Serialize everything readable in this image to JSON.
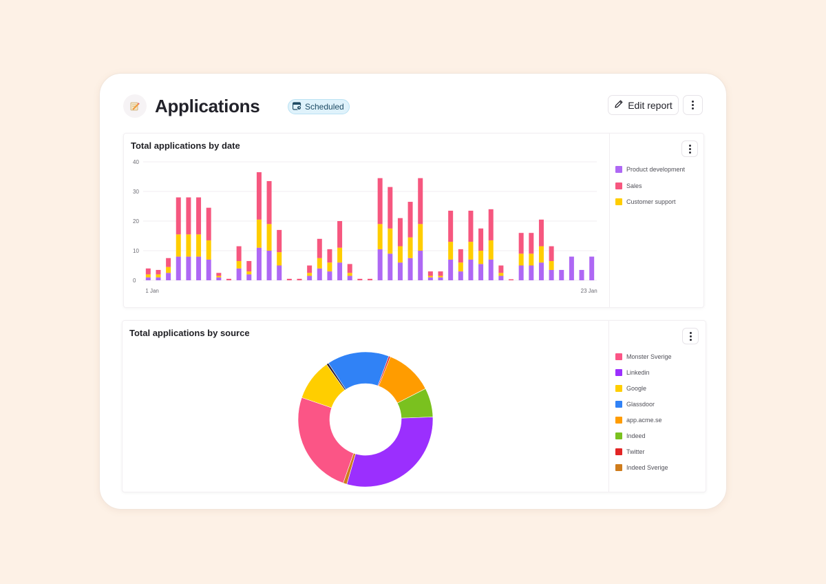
{
  "header": {
    "title": "Applications",
    "badge": "Scheduled",
    "edit_button": "Edit report",
    "icons": {
      "app": "notebook-pencil-icon",
      "badge": "calendar-icon",
      "edit": "pencil-icon",
      "more": "vertical-dots-icon"
    }
  },
  "charts": {
    "by_date": {
      "title": "Total applications by date"
    },
    "by_source": {
      "title": "Total applications by source"
    }
  },
  "chart_data": [
    {
      "type": "bar",
      "stacked": true,
      "title": "Total applications by date",
      "x_tick_labels": [
        "1 Jan",
        "23 Jan"
      ],
      "y_ticks": [
        0,
        10,
        20,
        30,
        40
      ],
      "ylim": [
        0,
        40
      ],
      "grid": true,
      "legend_position": "right",
      "series": [
        {
          "name": "Product development",
          "color": "#ae68f4",
          "values": [
            1,
            1,
            2.5,
            8,
            8,
            8,
            7,
            1,
            0,
            4,
            2,
            11,
            10,
            5,
            0,
            0,
            1.5,
            4,
            3,
            6,
            1.5,
            0,
            0,
            10.5,
            9,
            6,
            7.5,
            10,
            1,
            1,
            7,
            3,
            7,
            5.5,
            7,
            1.5,
            0,
            5,
            5,
            6,
            3.5,
            3.5,
            8,
            3.5,
            8
          ]
        },
        {
          "name": "Sales",
          "color": "#f6577f",
          "values": [
            2,
            1.5,
            3,
            12.5,
            12.5,
            12.5,
            11,
            1,
            0.5,
            5,
            3.5,
            16,
            14.5,
            7.5,
            0.5,
            0.5,
            2.5,
            6.5,
            4.5,
            9,
            3,
            0.5,
            0.5,
            15.5,
            14,
            9.5,
            12,
            15.5,
            1.5,
            1.5,
            10.5,
            4.5,
            10.5,
            7.5,
            10.5,
            2.5,
            0,
            7,
            7,
            9,
            5,
            0,
            0,
            0,
            0
          ]
        },
        {
          "name": "Customer support",
          "color": "#ffcd00",
          "values": [
            1,
            1,
            2,
            7.5,
            7.5,
            7.5,
            6.5,
            0.5,
            0,
            2.5,
            1,
            9.5,
            9,
            4.5,
            0,
            0,
            1,
            3.5,
            3,
            5,
            1,
            0,
            0,
            8.5,
            8.5,
            5.5,
            7,
            9,
            0.5,
            0.5,
            6,
            3,
            6,
            4.5,
            6.5,
            1,
            0,
            4,
            4,
            5.5,
            3,
            0,
            0,
            0,
            0
          ]
        }
      ]
    },
    {
      "type": "pie",
      "donut": true,
      "title": "Total applications by source",
      "legend_position": "right",
      "slices": [
        {
          "label": "Monster Sverige",
          "value": 25.0,
          "color": "#fb5586"
        },
        {
          "label": "Linkedin",
          "value": 30.2,
          "color": "#9b2ffe"
        },
        {
          "label": "Google",
          "value": 10.0,
          "color": "#ffce00"
        },
        {
          "label": "Glassdoor",
          "value": 15.0,
          "color": "#3082f6"
        },
        {
          "label": "app.acme.se",
          "value": 11.5,
          "color": "#ff9c00"
        },
        {
          "label": "Indeed",
          "value": 7.0,
          "color": "#7ac11f"
        },
        {
          "label": "Twitter",
          "value": 0.4,
          "color": "#e22525"
        },
        {
          "label": "Indeed Sverige",
          "value": 0.9,
          "color": "#cf7c1c"
        }
      ],
      "order_clockwise_from_top": [
        "Glassdoor",
        "Twitter",
        "app.acme.se",
        "Indeed",
        "Linkedin",
        "Indeed Sverige",
        "Monster Sverige",
        "Google"
      ],
      "extra_slice_color": "#2b1f33",
      "extra_slice_value": 0.5
    }
  ]
}
